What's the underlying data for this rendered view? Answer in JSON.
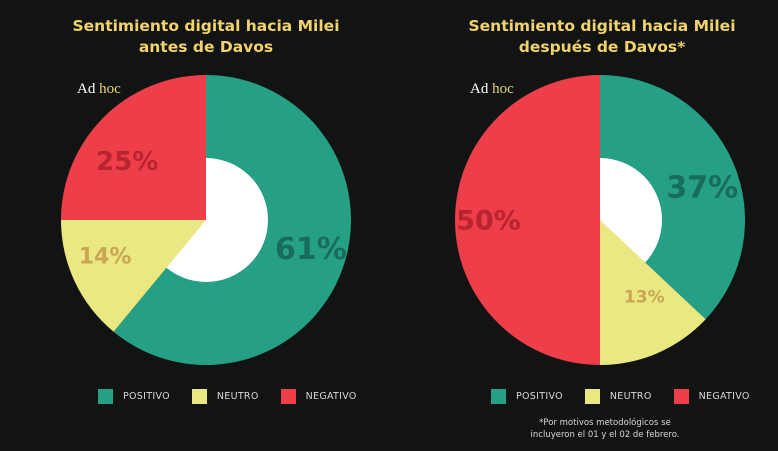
{
  "colors": {
    "positivo": "#25a085",
    "neutro": "#eae882",
    "negativo": "#ed3e4a"
  },
  "label_colors": {
    "positivo": "#196c5a",
    "neutro": "#c9a64f",
    "negativo": "#b8242f"
  },
  "logo": {
    "part1": "Ad",
    "part2": "hoc"
  },
  "chart_data": [
    {
      "type": "pie",
      "title_line1": "Sentimiento digital hacia Milei",
      "title_line2": "antes de Davos",
      "categories": [
        "POSITIVO",
        "NEUTRO",
        "NEGATIVO"
      ],
      "values": [
        61,
        14,
        25
      ],
      "labels": [
        "61%",
        "14%",
        "25%"
      ],
      "legend": "bottom"
    },
    {
      "type": "pie",
      "title_line1": "Sentimiento digital hacia Milei",
      "title_line2": "después de Davos*",
      "categories": [
        "POSITIVO",
        "NEUTRO",
        "NEGATIVO"
      ],
      "values": [
        37,
        13,
        50
      ],
      "labels": [
        "37%",
        "13%",
        "50%"
      ],
      "legend": "bottom"
    }
  ],
  "footnote": {
    "line1": "*Por motivos metodológicos se",
    "line2": "incluyeron el 01 y el 02 de febrero."
  }
}
